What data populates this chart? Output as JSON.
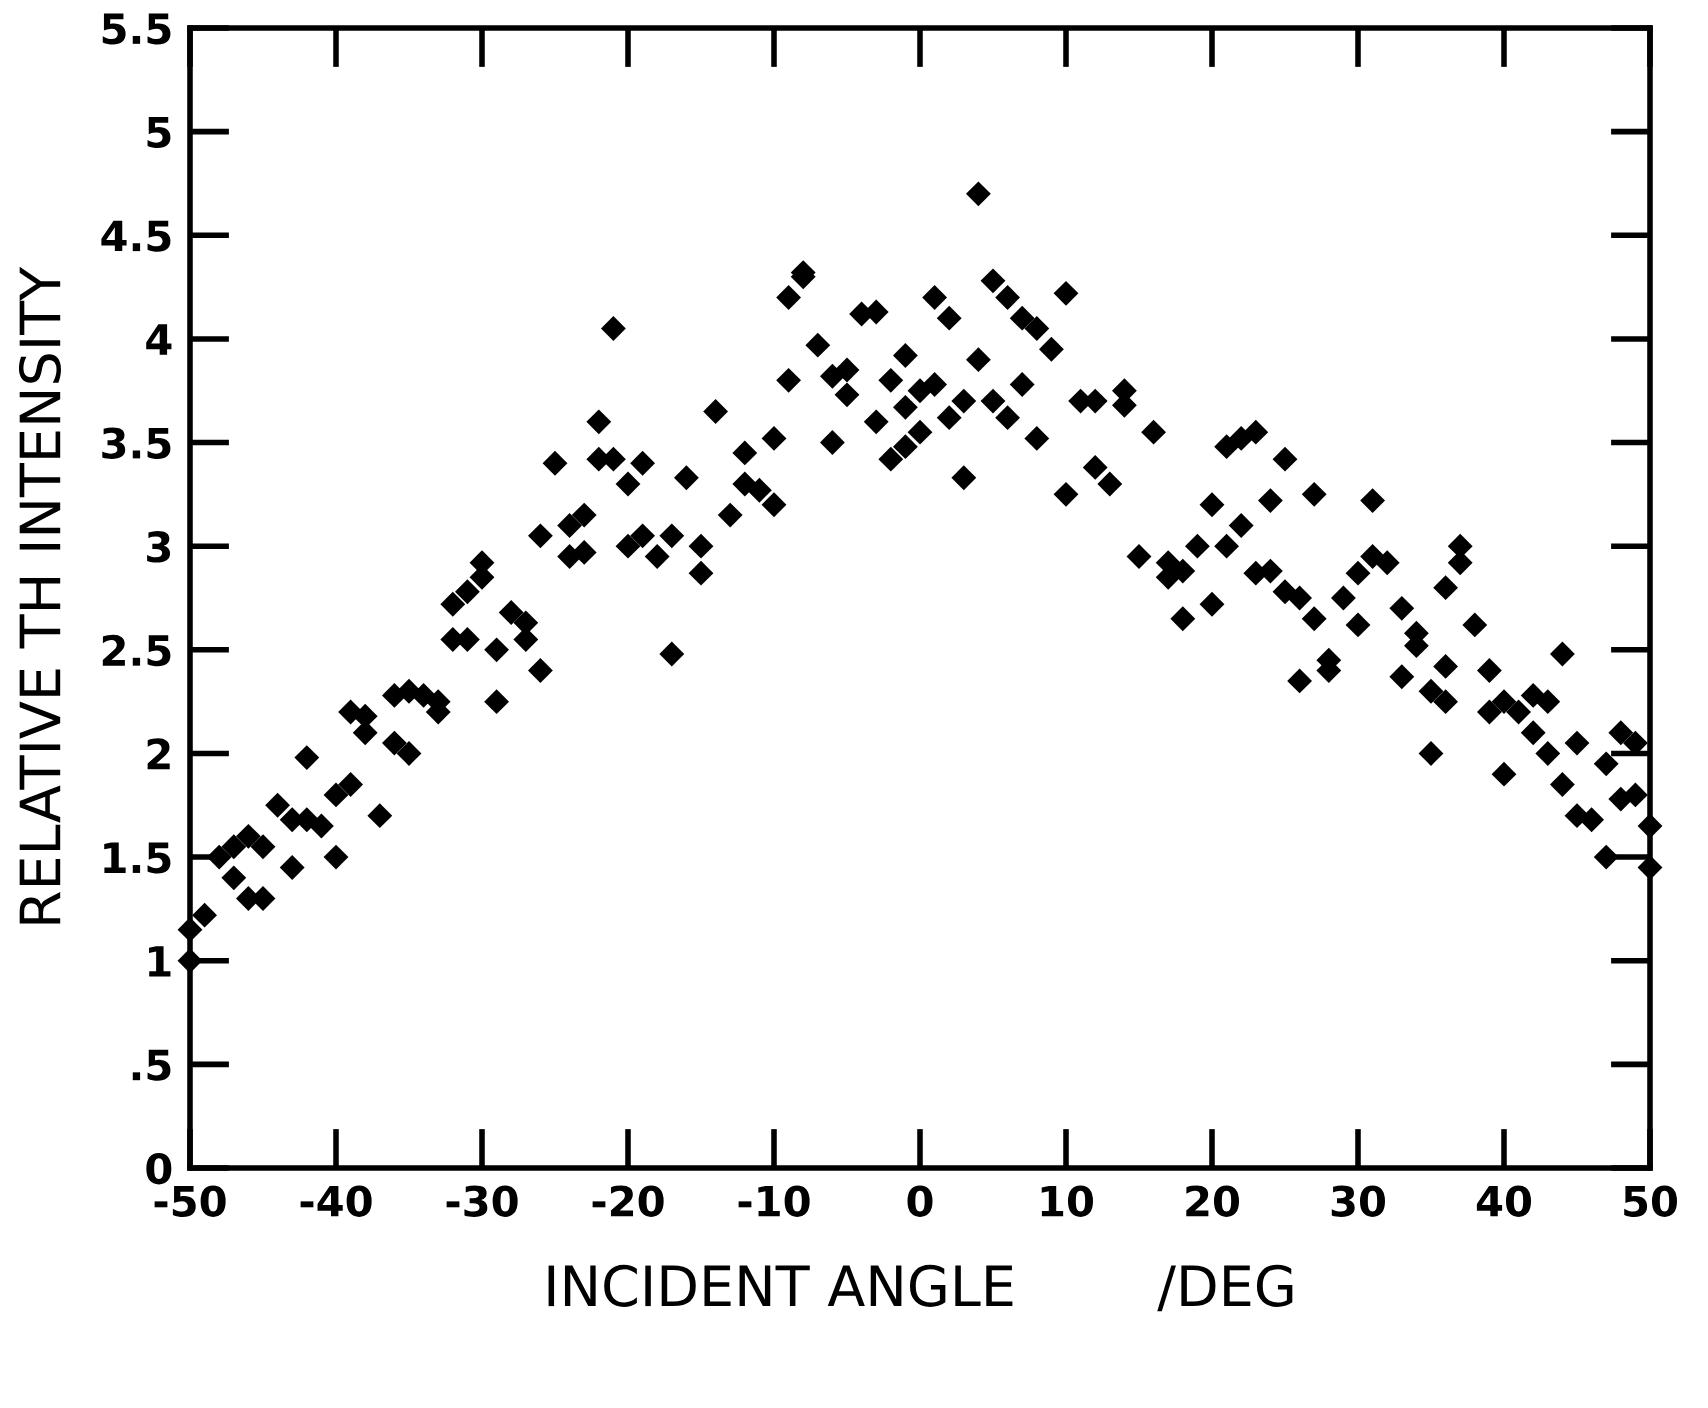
{
  "chart_data": {
    "type": "scatter",
    "xlabel": "INCIDENT ANGLE        /DEG",
    "ylabel": "RELATIVE TH INTENSITY",
    "x": [
      -50,
      -50,
      -49,
      -48,
      -47,
      -47,
      -46,
      -46,
      -45,
      -45,
      -44,
      -43,
      -43,
      -42,
      -42,
      -41,
      -40,
      -40,
      -39,
      -39,
      -38,
      -38,
      -37,
      -36,
      -36,
      -35,
      -35,
      -34,
      -33,
      -33,
      -32,
      -32,
      -31,
      -31,
      -30,
      -30,
      -29,
      -29,
      -28,
      -27,
      -27,
      -26,
      -26,
      -25,
      -24,
      -24,
      -23,
      -23,
      -22,
      -22,
      -21,
      -21,
      -20,
      -20,
      -19,
      -19,
      -18,
      -17,
      -17,
      -16,
      -15,
      -15,
      -14,
      -13,
      -12,
      -12,
      -11,
      -10,
      -10,
      -9,
      -9,
      -8,
      -8,
      -7,
      -6,
      -6,
      -5,
      -5,
      -4,
      -3,
      -3,
      -2,
      -2,
      -1,
      -1,
      -1,
      0,
      0,
      1,
      1,
      2,
      2,
      3,
      3,
      4,
      4,
      5,
      5,
      6,
      6,
      7,
      7,
      8,
      8,
      9,
      10,
      10,
      11,
      12,
      12,
      13,
      14,
      14,
      15,
      16,
      17,
      17,
      18,
      18,
      19,
      20,
      20,
      21,
      21,
      22,
      22,
      23,
      23,
      24,
      24,
      25,
      25,
      26,
      26,
      27,
      27,
      28,
      28,
      29,
      30,
      30,
      31,
      31,
      32,
      33,
      33,
      34,
      34,
      35,
      35,
      36,
      36,
      36,
      37,
      37,
      38,
      39,
      39,
      40,
      40,
      41,
      42,
      42,
      43,
      43,
      44,
      44,
      45,
      45,
      46,
      47,
      47,
      48,
      48,
      49,
      49,
      50,
      50
    ],
    "values": [
      1.15,
      1.0,
      1.22,
      1.5,
      1.55,
      1.4,
      1.3,
      1.6,
      1.55,
      1.3,
      1.75,
      1.45,
      1.68,
      1.98,
      1.68,
      1.65,
      1.5,
      1.8,
      2.2,
      1.85,
      2.1,
      2.18,
      1.7,
      2.28,
      2.05,
      2.3,
      2.0,
      2.28,
      2.2,
      2.25,
      2.72,
      2.55,
      2.78,
      2.55,
      2.85,
      2.92,
      2.25,
      2.5,
      2.68,
      2.63,
      2.55,
      3.05,
      2.4,
      3.4,
      2.95,
      3.1,
      3.15,
      2.97,
      3.42,
      3.6,
      3.42,
      4.05,
      3.3,
      3.0,
      3.4,
      3.05,
      2.95,
      3.05,
      2.48,
      3.33,
      2.87,
      3.0,
      3.65,
      3.15,
      3.3,
      3.45,
      3.27,
      3.2,
      3.52,
      3.8,
      4.2,
      4.3,
      4.32,
      3.97,
      3.5,
      3.82,
      3.85,
      3.73,
      4.12,
      4.13,
      3.6,
      3.42,
      3.8,
      3.48,
      3.67,
      3.92,
      3.55,
      3.75,
      3.78,
      4.2,
      4.1,
      3.62,
      3.33,
      3.7,
      3.9,
      4.7,
      4.28,
      3.7,
      4.2,
      3.62,
      3.78,
      4.1,
      3.52,
      4.05,
      3.95,
      4.22,
      3.25,
      3.7,
      3.38,
      3.7,
      3.3,
      3.75,
      3.68,
      2.95,
      3.55,
      2.92,
      2.85,
      2.65,
      2.88,
      3.0,
      2.72,
      3.2,
      3.48,
      3.0,
      3.52,
      3.1,
      3.55,
      2.87,
      3.22,
      2.88,
      2.78,
      3.42,
      2.35,
      2.75,
      3.25,
      2.65,
      2.4,
      2.45,
      2.75,
      2.62,
      2.87,
      3.22,
      2.95,
      2.92,
      2.7,
      2.37,
      2.52,
      2.58,
      2.3,
      2.0,
      2.25,
      2.42,
      2.8,
      2.92,
      3.0,
      2.62,
      2.4,
      2.2,
      2.25,
      1.9,
      2.2,
      2.28,
      2.1,
      2.25,
      2.0,
      2.48,
      1.85,
      2.05,
      1.7,
      1.68,
      1.95,
      1.5,
      2.1,
      1.78,
      2.05,
      1.8,
      1.45,
      1.65
    ],
    "color": "#000000",
    "marker": "diamond",
    "xlim": [
      -50,
      50
    ],
    "xticks": [
      -50,
      -40,
      -30,
      -20,
      -10,
      0,
      10,
      20,
      30,
      40,
      50
    ],
    "ylim": [
      0,
      5.5
    ],
    "yticks": [
      0,
      {
        "value": 0.5,
        "label": ".5"
      },
      1,
      1.5,
      2,
      2.5,
      3,
      3.5,
      4,
      4.5,
      5,
      5.5
    ],
    "grid": false,
    "legend": false
  }
}
